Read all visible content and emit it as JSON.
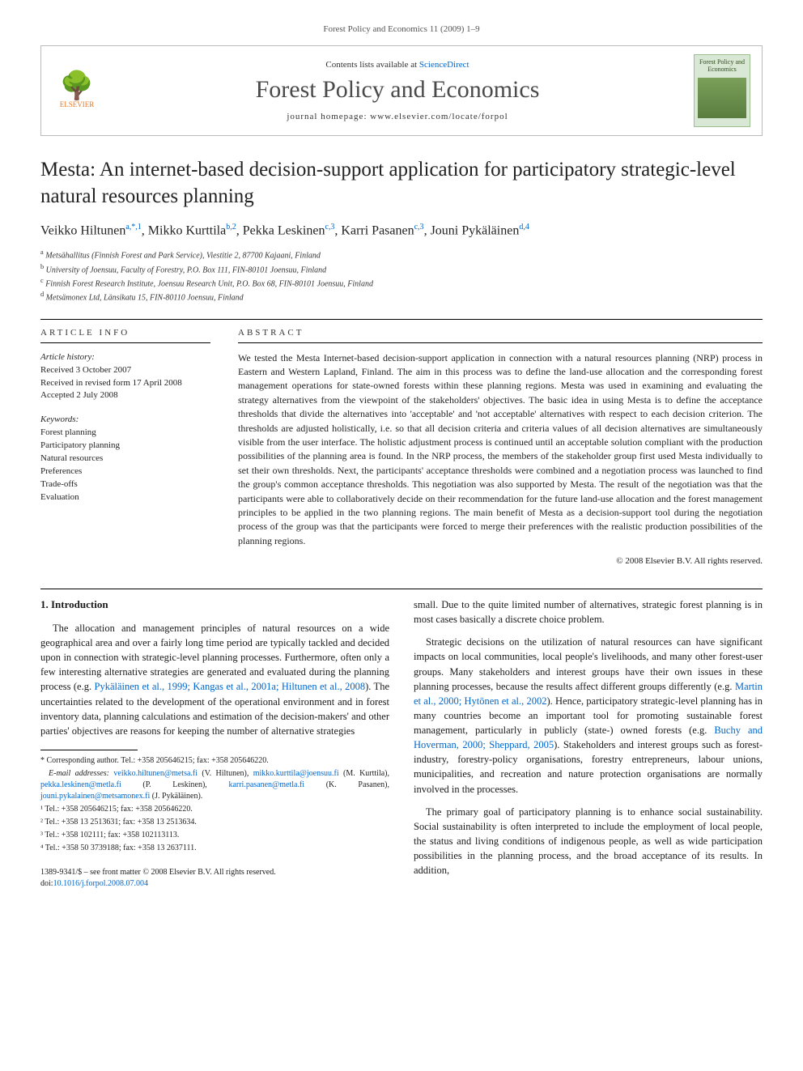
{
  "running_header": "Forest Policy and Economics 11 (2009) 1–9",
  "banner": {
    "contents_prefix": "Contents lists available at ",
    "contents_link": "ScienceDirect",
    "journal_name": "Forest Policy and Economics",
    "homepage_prefix": "journal homepage: ",
    "homepage_url": "www.elsevier.com/locate/forpol",
    "publisher_label": "ELSEVIER",
    "cover_title": "Forest Policy and Economics"
  },
  "title": "Mesta: An internet-based decision-support application for participatory strategic-level natural resources planning",
  "authors_html_parts": {
    "a1_name": "Veikko Hiltunen",
    "a1_sup": "a,*,1",
    "a2_name": "Mikko Kurttila",
    "a2_sup": "b,2",
    "a3_name": "Pekka Leskinen",
    "a3_sup": "c,3",
    "a4_name": "Karri Pasanen",
    "a4_sup": "c,3",
    "a5_name": "Jouni Pykäläinen",
    "a5_sup": "d,4"
  },
  "affiliations": {
    "a": "Metsähallitus (Finnish Forest and Park Service), Viestitie 2, 87700 Kajaani, Finland",
    "b": "University of Joensuu, Faculty of Forestry, P.O. Box 111, FIN-80101 Joensuu, Finland",
    "c": "Finnish Forest Research Institute, Joensuu Research Unit, P.O. Box 68, FIN-80101 Joensuu, Finland",
    "d": "Metsämonex Ltd, Länsikatu 15, FIN-80110 Joensuu, Finland"
  },
  "article_info": {
    "heading": "ARTICLE INFO",
    "history_label": "Article history:",
    "received": "Received 3 October 2007",
    "revised": "Received in revised form 17 April 2008",
    "accepted": "Accepted 2 July 2008",
    "keywords_label": "Keywords:",
    "keywords": [
      "Forest planning",
      "Participatory planning",
      "Natural resources",
      "Preferences",
      "Trade-offs",
      "Evaluation"
    ]
  },
  "abstract": {
    "heading": "ABSTRACT",
    "text": "We tested the Mesta Internet-based decision-support application in connection with a natural resources planning (NRP) process in Eastern and Western Lapland, Finland. The aim in this process was to define the land-use allocation and the corresponding forest management operations for state-owned forests within these planning regions. Mesta was used in examining and evaluating the strategy alternatives from the viewpoint of the stakeholders' objectives. The basic idea in using Mesta is to define the acceptance thresholds that divide the alternatives into 'acceptable' and 'not acceptable' alternatives with respect to each decision criterion. The thresholds are adjusted holistically, i.e. so that all decision criteria and criteria values of all decision alternatives are simultaneously visible from the user interface. The holistic adjustment process is continued until an acceptable solution compliant with the production possibilities of the planning area is found. In the NRP process, the members of the stakeholder group first used Mesta individually to set their own thresholds. Next, the participants' acceptance thresholds were combined and a negotiation process was launched to find the group's common acceptance thresholds. This negotiation was also supported by Mesta. The result of the negotiation was that the participants were able to collaboratively decide on their recommendation for the future land-use allocation and the forest management principles to be applied in the two planning regions. The main benefit of Mesta as a decision-support tool during the negotiation process of the group was that the participants were forced to merge their preferences with the realistic production possibilities of the planning regions.",
    "copyright": "© 2008 Elsevier B.V. All rights reserved."
  },
  "body": {
    "section_heading": "1. Introduction",
    "left_col": {
      "p1_pre": "The allocation and management principles of natural resources on a wide geographical area and over a fairly long time period are typically tackled and decided upon in connection with strategic-level planning processes. Furthermore, often only a few interesting alternative strategies are generated and evaluated during the planning process (e.g. ",
      "p1_link": "Pykäläinen et al., 1999; Kangas et al., 2001a; Hiltunen et al., 2008",
      "p1_post": "). The uncertainties related to the development of the operational environment and in forest inventory data, planning calculations and estimation of the decision-makers' and other parties' objectives are reasons for keeping the number of alternative strategies"
    },
    "right_col": {
      "p1": "small. Due to the quite limited number of alternatives, strategic forest planning is in most cases basically a discrete choice problem.",
      "p2_pre": "Strategic decisions on the utilization of natural resources can have significant impacts on local communities, local people's livelihoods, and many other forest-user groups. Many stakeholders and interest groups have their own issues in these planning processes, because the results affect different groups differently (e.g. ",
      "p2_link1": "Martin et al., 2000; Hytönen et al., 2002",
      "p2_mid": "). Hence, participatory strategic-level planning has in many countries become an important tool for promoting sustainable forest management, particularly in publicly (state-) owned forests (e.g. ",
      "p2_link2": "Buchy and Hoverman, 2000; Sheppard, 2005",
      "p2_post": "). Stakeholders and interest groups such as forest-industry, forestry-policy organisations, forestry entrepreneurs, labour unions, municipalities, and recreation and nature protection organisations are normally involved in the processes.",
      "p3": "The primary goal of participatory planning is to enhance social sustainability. Social sustainability is often interpreted to include the employment of local people, the status and living conditions of indigenous people, as well as wide participation possibilities in the planning process, and the broad acceptance of its results. In addition,"
    }
  },
  "footnotes": {
    "corresponding": "* Corresponding author. Tel.: +358 205646215; fax: +358 205646220.",
    "email_label": "E-mail addresses:",
    "emails": [
      {
        "addr": "veikko.hiltunen@metsa.fi",
        "who": "(V. Hiltunen)"
      },
      {
        "addr": "mikko.kurttila@joensuu.fi",
        "who": "(M. Kurttila)"
      },
      {
        "addr": "pekka.leskinen@metla.fi",
        "who": "(P. Leskinen)"
      },
      {
        "addr": "karri.pasanen@metla.fi",
        "who": "(K. Pasanen)"
      },
      {
        "addr": "jouni.pykalainen@metsamonex.fi",
        "who": "(J. Pykäläinen)"
      }
    ],
    "tels": [
      "¹ Tel.: +358 205646215; fax: +358 205646220.",
      "² Tel.: +358 13 2513631; fax: +358 13 2513634.",
      "³ Tel.: +358 102111; fax: +358 102113113.",
      "⁴ Tel.: +358 50 3739188; fax: +358 13 2637111."
    ]
  },
  "bottom": {
    "issn_line": "1389-9341/$ – see front matter © 2008 Elsevier B.V. All rights reserved.",
    "doi_prefix": "doi:",
    "doi": "10.1016/j.forpol.2008.07.004"
  },
  "colors": {
    "link": "#0066cc",
    "elsevier_orange": "#e87722",
    "cover_bg": "#d9e8d4",
    "cover_border": "#9bbf8f"
  }
}
